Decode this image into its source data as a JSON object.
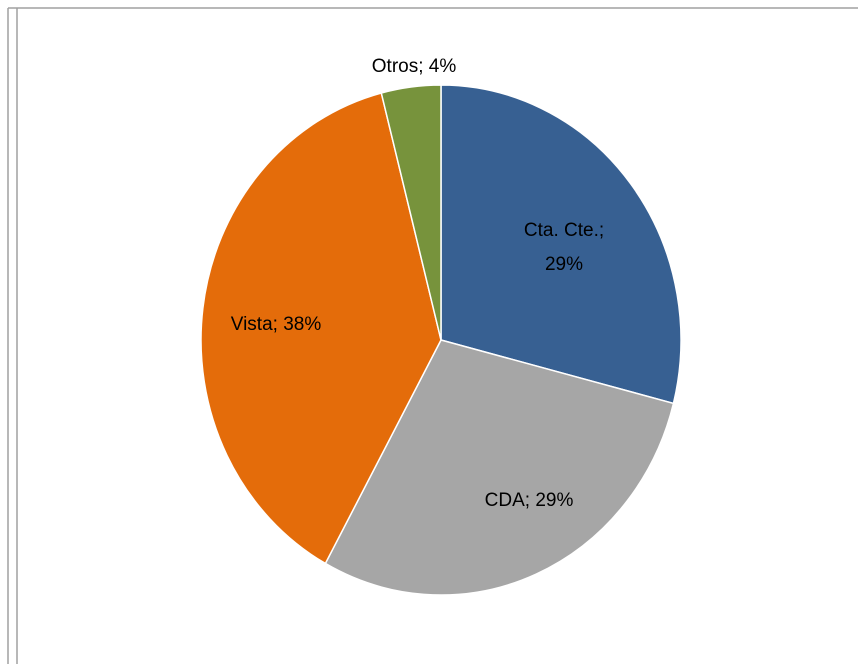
{
  "chart_data": {
    "type": "pie",
    "values": [
      29,
      29,
      38,
      4
    ],
    "value_labels": [
      "Cta. Cte.; 29%",
      "CDA; 29%",
      "Vista; 38%",
      "Otros; 4%"
    ],
    "colors": [
      "#376092",
      "#a6a6a6",
      "#e46c0a",
      "#77933c"
    ]
  }
}
